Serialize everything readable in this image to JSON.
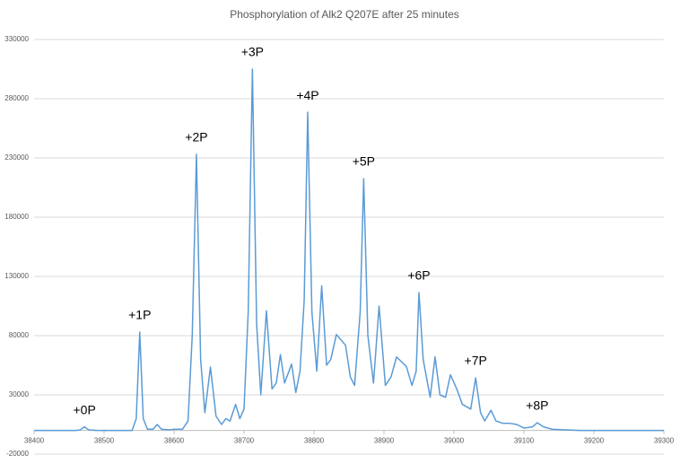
{
  "chart_data": {
    "type": "line",
    "title": "Phosphorylation of Alk2 Q207E after 25 minutes",
    "xlim": [
      38400,
      39300
    ],
    "xticks": [
      38400,
      38500,
      38600,
      38700,
      38800,
      38900,
      39000,
      39100,
      39200,
      39300
    ],
    "ylim": [
      -20000,
      330000
    ],
    "yticks": [
      -20000,
      30000,
      80000,
      130000,
      180000,
      230000,
      280000,
      330000
    ],
    "grid": true,
    "x": [
      38400,
      38460,
      38466,
      38472,
      38478,
      38490,
      38540,
      38546,
      38551,
      38556,
      38562,
      38570,
      38576,
      38582,
      38594,
      38600,
      38612,
      38620,
      38626,
      38632,
      38638,
      38644,
      38652,
      38660,
      38668,
      38674,
      38680,
      38688,
      38694,
      38700,
      38706,
      38712,
      38718,
      38724,
      38732,
      38740,
      38746,
      38752,
      38758,
      38768,
      38774,
      38780,
      38786,
      38791,
      38797,
      38804,
      38811,
      38818,
      38824,
      38832,
      38845,
      38852,
      38858,
      38866,
      38871,
      38877,
      38885,
      38893,
      38902,
      38910,
      38918,
      38932,
      38940,
      38946,
      38950,
      38956,
      38966,
      38973,
      38980,
      38988,
      38995,
      39004,
      39012,
      39024,
      39031,
      39038,
      39044,
      39053,
      39060,
      39070,
      39080,
      39090,
      39100,
      39112,
      39119,
      39128,
      39140,
      39160,
      39180,
      39300
    ],
    "series": [
      {
        "color": "#5b9bd5",
        "values": [
          0,
          0,
          500,
          3000,
          500,
          0,
          0,
          10000,
          83000,
          10000,
          1000,
          1000,
          5000,
          1000,
          500,
          1000,
          1000,
          8000,
          80000,
          233000,
          60000,
          15000,
          53500,
          12000,
          5000,
          10000,
          8000,
          22000,
          10000,
          18000,
          100000,
          305000,
          90000,
          30000,
          101000,
          35000,
          40000,
          64000,
          40000,
          56000,
          32000,
          50000,
          110000,
          268600,
          100000,
          50000,
          122000,
          55000,
          60000,
          81000,
          72000,
          45000,
          38000,
          100000,
          212600,
          80000,
          40000,
          105000,
          38000,
          45000,
          62000,
          54000,
          38000,
          50000,
          116400,
          60000,
          28000,
          62000,
          30000,
          28000,
          47000,
          35000,
          22000,
          18000,
          44400,
          15000,
          8000,
          17000,
          8000,
          6000,
          6000,
          5000,
          2000,
          3000,
          6500,
          3000,
          1000,
          500,
          0,
          0
        ]
      }
    ],
    "annotations": [
      {
        "text": "+0P",
        "x": 38472,
        "y": 3000
      },
      {
        "text": "+1P",
        "x": 38551,
        "y": 83000
      },
      {
        "text": "+2P",
        "x": 38632,
        "y": 233000
      },
      {
        "text": "+3P",
        "x": 38712,
        "y": 305000
      },
      {
        "text": "+4P",
        "x": 38791,
        "y": 268600
      },
      {
        "text": "+5P",
        "x": 38871,
        "y": 212600
      },
      {
        "text": "+6P",
        "x": 38950,
        "y": 116400
      },
      {
        "text": "+7P",
        "x": 39031,
        "y": 44400
      },
      {
        "text": "+8P",
        "x": 39119,
        "y": 6500
      }
    ]
  }
}
